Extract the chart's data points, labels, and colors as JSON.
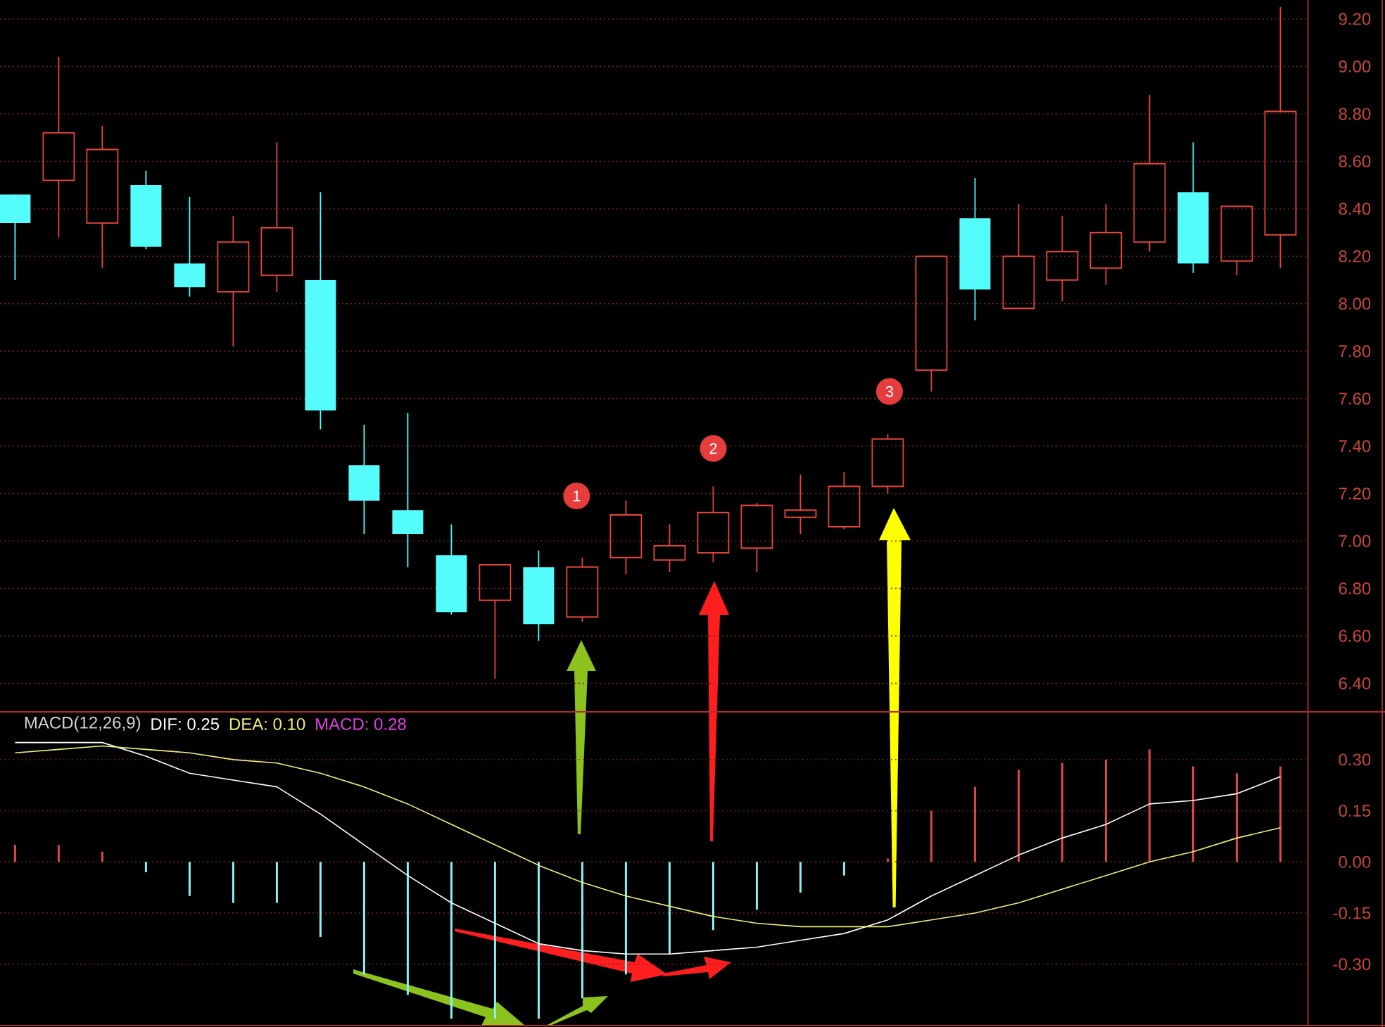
{
  "chart_data": [
    {
      "type": "candlestick",
      "categories": [
        null,
        null,
        null,
        null,
        null,
        null,
        null,
        null,
        null,
        null,
        null,
        null,
        null,
        null,
        null,
        null,
        null,
        null,
        null,
        null,
        null,
        null,
        null,
        null,
        null,
        null,
        null,
        null,
        null,
        null
      ],
      "ohlc": [
        [
          8.46,
          8.46,
          8.1,
          8.34
        ],
        [
          8.52,
          9.04,
          8.28,
          8.72
        ],
        [
          8.34,
          8.75,
          8.15,
          8.65
        ],
        [
          8.5,
          8.56,
          8.23,
          8.24
        ],
        [
          8.17,
          8.45,
          8.03,
          8.07
        ],
        [
          8.05,
          8.37,
          7.82,
          8.26
        ],
        [
          8.12,
          8.68,
          8.05,
          8.32
        ],
        [
          8.1,
          8.47,
          7.47,
          7.55
        ],
        [
          7.32,
          7.49,
          7.03,
          7.17
        ],
        [
          7.13,
          7.54,
          6.89,
          7.03
        ],
        [
          6.94,
          7.07,
          6.69,
          6.7
        ],
        [
          6.75,
          6.9,
          6.42,
          6.9
        ],
        [
          6.89,
          6.96,
          6.58,
          6.65
        ],
        [
          6.68,
          6.93,
          6.66,
          6.89
        ],
        [
          6.93,
          7.17,
          6.86,
          7.11
        ],
        [
          6.92,
          7.07,
          6.87,
          6.98
        ],
        [
          6.95,
          7.23,
          6.91,
          7.12
        ],
        [
          6.97,
          7.16,
          6.87,
          7.15
        ],
        [
          7.1,
          7.28,
          7.03,
          7.13
        ],
        [
          7.06,
          7.29,
          7.05,
          7.23
        ],
        [
          7.23,
          7.45,
          7.2,
          7.43
        ],
        [
          7.72,
          8.2,
          7.63,
          8.2
        ],
        [
          8.36,
          8.53,
          7.93,
          8.06
        ],
        [
          7.98,
          8.42,
          7.98,
          8.2
        ],
        [
          8.1,
          8.37,
          8.01,
          8.22
        ],
        [
          8.15,
          8.42,
          8.08,
          8.3
        ],
        [
          8.26,
          8.88,
          8.22,
          8.59
        ],
        [
          8.47,
          8.68,
          8.13,
          8.17
        ],
        [
          8.18,
          8.41,
          8.12,
          8.41
        ],
        [
          8.29,
          9.25,
          8.15,
          8.81
        ]
      ],
      "colors": [
        "#54fcfc",
        "#e8463c",
        "#e8463c",
        "#54fcfc",
        "#54fcfc",
        "#e8463c",
        "#e8463c",
        "#54fcfc",
        "#54fcfc",
        "#54fcfc",
        "#54fcfc",
        "#e8463c",
        "#54fcfc",
        "#e8463c",
        "#e8463c",
        "#e8463c",
        "#e8463c",
        "#e8463c",
        "#e8463c",
        "#e8463c",
        "#e8463c",
        "#e8463c",
        "#54fcfc",
        "#e8463c",
        "#e8463c",
        "#e8463c",
        "#e8463c",
        "#54fcfc",
        "#e8463c",
        "#e8463c"
      ],
      "ylim": [
        6.28,
        9.28
      ],
      "yticks": [
        {
          "value": 6.4,
          "label": "6.40"
        },
        {
          "value": 6.6,
          "label": "6.60"
        },
        {
          "value": 6.8,
          "label": "6.80"
        },
        {
          "value": 7.0,
          "label": "7.00"
        },
        {
          "value": 7.2,
          "label": "7.20"
        },
        {
          "value": 7.4,
          "label": "7.40"
        },
        {
          "value": 7.6,
          "label": "7.60"
        },
        {
          "value": 7.8,
          "label": "7.80"
        },
        {
          "value": 8.0,
          "label": "8.00"
        },
        {
          "value": 8.2,
          "label": "8.20"
        },
        {
          "value": 8.4,
          "label": "8.40"
        },
        {
          "value": 8.6,
          "label": "8.60"
        },
        {
          "value": 8.8,
          "label": "8.80"
        },
        {
          "value": 9.0,
          "label": "9.00"
        },
        {
          "value": 9.2,
          "label": "9.20"
        }
      ],
      "grid": "y",
      "annotations": [
        {
          "text": "1",
          "y": 7.19
        },
        {
          "text": "2",
          "y": 7.39
        },
        {
          "text": "3",
          "y": 7.63
        }
      ]
    },
    {
      "type": "bar",
      "categories": [
        null,
        null,
        null,
        null,
        null,
        null,
        null,
        null,
        null,
        null,
        null,
        null,
        null,
        null,
        null,
        null,
        null,
        null,
        null,
        null,
        null,
        null,
        null,
        null,
        null,
        null,
        null,
        null,
        null,
        null
      ],
      "legend_title": "MACD(12,26,9)",
      "series": [
        {
          "name": "DIF: 0.25",
          "type": "line",
          "color": "#ffffff",
          "values": [
            0.35,
            0.35,
            0.35,
            0.31,
            0.26,
            0.24,
            0.22,
            0.14,
            0.05,
            -0.04,
            -0.12,
            -0.18,
            -0.24,
            -0.26,
            -0.27,
            -0.27,
            -0.26,
            -0.25,
            -0.23,
            -0.21,
            -0.17,
            -0.1,
            -0.04,
            0.02,
            0.07,
            0.11,
            0.17,
            0.18,
            0.2,
            0.25
          ]
        },
        {
          "name": "DEA: 0.10",
          "type": "line",
          "color": "#f0f078",
          "values": [
            0.32,
            0.33,
            0.34,
            0.33,
            0.32,
            0.3,
            0.29,
            0.26,
            0.22,
            0.17,
            0.11,
            0.05,
            -0.01,
            -0.06,
            -0.1,
            -0.13,
            -0.16,
            -0.18,
            -0.19,
            -0.19,
            -0.19,
            -0.17,
            -0.15,
            -0.12,
            -0.08,
            -0.04,
            0.0,
            0.03,
            0.07,
            0.1
          ]
        },
        {
          "values": [
            0.05,
            0.05,
            0.03,
            -0.03,
            -0.1,
            -0.12,
            -0.12,
            -0.22,
            -0.33,
            -0.39,
            -0.46,
            -0.46,
            -0.46,
            -0.4,
            -0.33,
            -0.27,
            -0.2,
            -0.14,
            -0.09,
            -0.04,
            0.01,
            0.15,
            0.22,
            0.27,
            0.29,
            0.3,
            0.33,
            0.28,
            0.26,
            0.28
          ],
          "colors": [
            "#e04848",
            "#e04848",
            "#e04848",
            "#8cf0f0",
            "#8cf0f0",
            "#8cf0f0",
            "#8cf0f0",
            "#8cf0f0",
            "#8cf0f0",
            "#8cf0f0",
            "#8cf0f0",
            "#8cf0f0",
            "#8cf0f0",
            "#8cf0f0",
            "#8cf0f0",
            "#8cf0f0",
            "#8cf0f0",
            "#8cf0f0",
            "#8cf0f0",
            "#8cf0f0",
            "#e04848",
            "#e04848",
            "#e04848",
            "#e04848",
            "#e04848",
            "#e04848",
            "#e04848",
            "#e04848",
            "#e04848",
            "#e04848"
          ]
        }
      ],
      "ylim": [
        -0.48,
        0.44
      ],
      "yticks": [
        {
          "value": -0.3,
          "label": "-0.30"
        },
        {
          "value": -0.15,
          "label": "-0.15"
        },
        {
          "value": 0,
          "label": "0.00"
        },
        {
          "value": 0.15,
          "label": "0.15"
        },
        {
          "value": 0.3,
          "label": "0.30"
        }
      ],
      "grid": "y",
      "legend": "top left",
      "annotations": [
        "MACD: 0.28"
      ]
    }
  ]
}
